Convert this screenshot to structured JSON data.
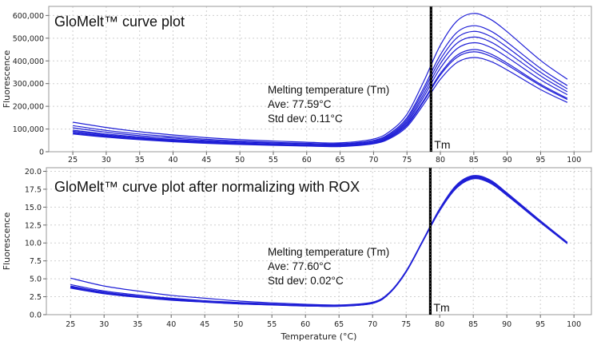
{
  "chart_data": [
    {
      "type": "line",
      "title": "GloMelt™ curve plot",
      "xlabel": "",
      "ylabel": "Fluorescence",
      "xlim": [
        21.4,
        102.6
      ],
      "ylim": [
        0,
        640000
      ],
      "xticks": [
        25,
        30,
        35,
        40,
        45,
        50,
        55,
        60,
        65,
        70,
        75,
        80,
        85,
        90,
        95,
        100
      ],
      "yticks": [
        0,
        100000,
        200000,
        300000,
        400000,
        500000,
        600000
      ],
      "ytick_labels": [
        "0",
        "100,000",
        "200,000",
        "300,000",
        "400,000",
        "500,000",
        "600,000"
      ],
      "grid": true,
      "line_color": "#1f1fd6",
      "tm_line": {
        "x": 78.6,
        "label": "Tm",
        "color": "#000000"
      },
      "annotation": [
        "Melting temperature (Tm)",
        "Ave: 77.59°C",
        "Std dev: 0.11°C"
      ],
      "x": [
        25,
        30,
        35,
        40,
        45,
        50,
        55,
        60,
        65,
        70,
        72.5,
        75,
        77.5,
        80,
        82.5,
        85,
        87.5,
        90,
        95,
        99
      ],
      "series": [
        {
          "values": [
            130000,
            107000,
            88000,
            74000,
            62000,
            53000,
            47000,
            42000,
            39000,
            56000,
            91000,
            165000,
            309000,
            469000,
            576000,
            609000,
            583000,
            528000,
            402000,
            319000
          ]
        },
        {
          "values": [
            115000,
            94000,
            78000,
            66000,
            55000,
            47000,
            41000,
            37000,
            35000,
            50000,
            82000,
            150000,
            281000,
            427000,
            526000,
            555000,
            532000,
            482000,
            367000,
            291000
          ]
        },
        {
          "values": [
            105000,
            86000,
            71000,
            60000,
            50000,
            43000,
            38000,
            34000,
            32000,
            47000,
            77000,
            142000,
            268000,
            407000,
            502000,
            530000,
            508000,
            460000,
            350000,
            277000
          ]
        },
        {
          "values": [
            95000,
            78000,
            65000,
            54000,
            46000,
            39000,
            34000,
            30000,
            29000,
            43000,
            72000,
            134000,
            254000,
            388000,
            478000,
            505000,
            484000,
            438000,
            334000,
            264000
          ]
        },
        {
          "values": [
            90000,
            74000,
            61000,
            51000,
            43000,
            37000,
            32000,
            29000,
            27000,
            41000,
            68000,
            127000,
            241000,
            368000,
            454000,
            480000,
            460000,
            416000,
            317000,
            251000
          ]
        },
        {
          "values": [
            85000,
            70000,
            58000,
            48000,
            41000,
            35000,
            31000,
            27000,
            26000,
            38000,
            64000,
            120000,
            226000,
            345000,
            425000,
            450000,
            431000,
            390000,
            297000,
            235000
          ]
        },
        {
          "values": [
            82000,
            67000,
            56000,
            47000,
            39000,
            34000,
            30000,
            26000,
            25000,
            37000,
            63000,
            117000,
            221000,
            338000,
            416000,
            440000,
            421000,
            382000,
            291000,
            230000
          ]
        },
        {
          "values": [
            78000,
            64000,
            53000,
            44000,
            37000,
            32000,
            28000,
            25000,
            23000,
            35000,
            59000,
            110000,
            209000,
            319000,
            393000,
            415000,
            398000,
            360000,
            274000,
            217000
          ]
        }
      ]
    },
    {
      "type": "line",
      "title": "GloMelt™ curve plot after normalizing with ROX",
      "xlabel": "Temperature (°C)",
      "ylabel": "Fluorescence",
      "xlim": [
        21.4,
        102.6
      ],
      "ylim": [
        0,
        20.5
      ],
      "xticks": [
        25,
        30,
        35,
        40,
        45,
        50,
        55,
        60,
        65,
        70,
        75,
        80,
        85,
        90,
        95,
        100
      ],
      "yticks": [
        0,
        2.5,
        5,
        7.5,
        10,
        12.5,
        15,
        17.5,
        20
      ],
      "ytick_labels": [
        "0.0",
        "2.5",
        "5.0",
        "7.5",
        "10.0",
        "12.5",
        "15.0",
        "17.5",
        "20.0"
      ],
      "grid": true,
      "line_color": "#1f1fd6",
      "tm_line": {
        "x": 78.6,
        "label": "Tm",
        "color": "#000000"
      },
      "annotation": [
        "Melting temperature (Tm)",
        "Ave: 77.60°C",
        "Std dev: 0.02°C"
      ],
      "x": [
        25,
        30,
        35,
        40,
        45,
        50,
        55,
        60,
        65,
        70,
        72.5,
        75,
        77.5,
        80,
        82.5,
        85,
        87.5,
        90,
        95,
        99
      ],
      "series": [
        {
          "values": [
            5.1,
            4.0,
            3.3,
            2.7,
            2.3,
            1.9,
            1.65,
            1.45,
            1.35,
            1.75,
            3.1,
            6.1,
            10.4,
            14.8,
            18.1,
            19.4,
            18.8,
            17.0,
            13.1,
            10.1
          ]
        },
        {
          "values": [
            4.2,
            3.3,
            2.75,
            2.3,
            1.95,
            1.7,
            1.5,
            1.35,
            1.28,
            1.68,
            3.05,
            6.05,
            10.35,
            14.7,
            18.0,
            19.3,
            18.7,
            16.95,
            13.05,
            10.05
          ]
        },
        {
          "values": [
            4.0,
            3.15,
            2.6,
            2.2,
            1.85,
            1.6,
            1.45,
            1.3,
            1.24,
            1.64,
            3.02,
            6.02,
            10.32,
            14.65,
            17.9,
            19.2,
            18.6,
            16.9,
            13.0,
            10.0
          ]
        },
        {
          "values": [
            3.9,
            3.05,
            2.55,
            2.15,
            1.82,
            1.57,
            1.42,
            1.27,
            1.22,
            1.62,
            3.0,
            6.0,
            10.3,
            14.6,
            17.85,
            19.15,
            18.55,
            16.85,
            13.0,
            10.0
          ]
        },
        {
          "values": [
            3.85,
            3.0,
            2.5,
            2.1,
            1.8,
            1.55,
            1.4,
            1.25,
            1.2,
            1.6,
            3.0,
            6.0,
            10.3,
            14.6,
            17.8,
            19.1,
            18.5,
            16.8,
            12.95,
            9.98
          ]
        },
        {
          "values": [
            3.8,
            2.98,
            2.48,
            2.08,
            1.78,
            1.53,
            1.38,
            1.23,
            1.19,
            1.59,
            2.98,
            5.98,
            10.28,
            14.55,
            17.75,
            19.05,
            18.45,
            16.75,
            12.92,
            9.95
          ]
        },
        {
          "values": [
            3.75,
            2.95,
            2.45,
            2.05,
            1.76,
            1.51,
            1.36,
            1.22,
            1.18,
            1.58,
            2.97,
            5.96,
            10.26,
            14.52,
            17.7,
            19.0,
            18.4,
            16.7,
            12.9,
            9.92
          ]
        },
        {
          "values": [
            3.7,
            2.92,
            2.42,
            2.02,
            1.74,
            1.5,
            1.35,
            1.21,
            1.17,
            1.57,
            2.96,
            5.95,
            10.25,
            14.5,
            17.65,
            18.95,
            18.35,
            16.65,
            12.85,
            9.9
          ]
        }
      ]
    }
  ]
}
